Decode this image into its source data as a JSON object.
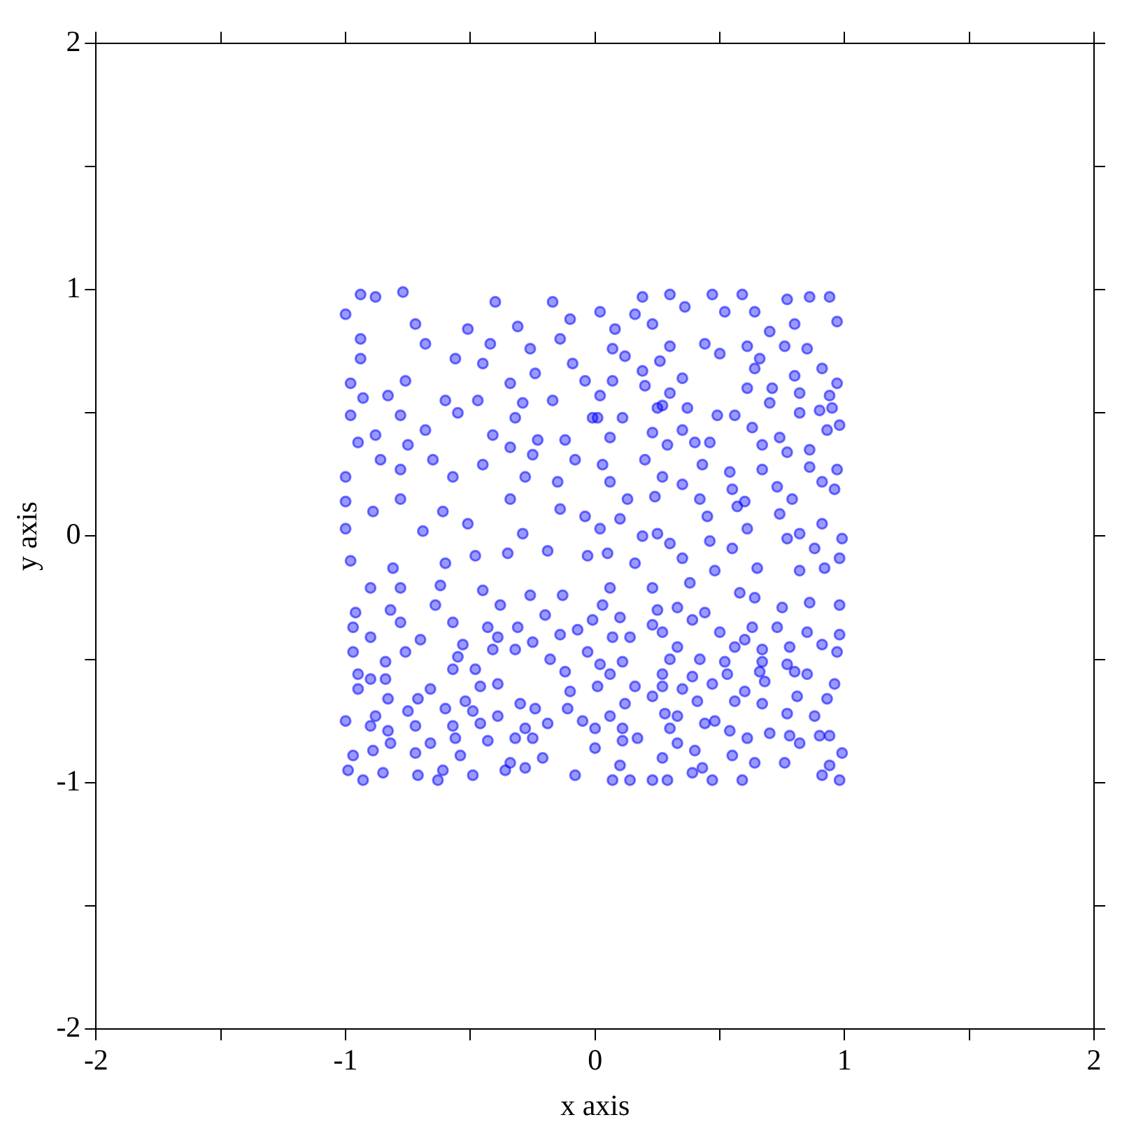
{
  "chart_data": {
    "type": "scatter",
    "xlabel": "x axis",
    "ylabel": "y axis",
    "marker": "circle",
    "grid": false,
    "legend": false,
    "xlim": [
      -2,
      2
    ],
    "ylim": [
      -2,
      2
    ],
    "xticks": [
      -2,
      {
        "value": -1.5,
        "label": null
      },
      -1,
      {
        "value": -0.5,
        "label": null
      },
      0,
      {
        "value": 0.5,
        "label": null
      },
      1,
      {
        "value": 1.5,
        "label": null
      },
      2
    ],
    "yticks": [
      -2,
      {
        "value": -1.5,
        "label": null
      },
      -1,
      {
        "value": -0.5,
        "label": null
      },
      0,
      {
        "value": 0.5,
        "label": null
      },
      1,
      {
        "value": 1.5,
        "label": null
      },
      2
    ],
    "series": [
      {
        "color": "#0000ff",
        "x": [
          -0.94,
          -0.88,
          -0.77,
          -0.4,
          -0.17,
          -1.0,
          -0.72,
          -0.51,
          -0.31,
          -0.1,
          -0.94,
          -0.68,
          -0.42,
          -0.26,
          -0.14,
          -0.94,
          -0.56,
          -0.45,
          -0.09,
          -0.98,
          -0.76,
          -0.34,
          -0.24,
          -0.04,
          -0.93,
          -0.83,
          -0.6,
          -0.47,
          -0.29,
          -0.17,
          -0.98,
          -0.78,
          -0.55,
          -0.32,
          -0.01,
          -0.88,
          -0.68,
          -0.41,
          -0.23,
          -0.12,
          -0.95,
          -0.75,
          -0.34,
          -0.86,
          -0.65,
          -0.45,
          -0.25,
          -0.08,
          -1.0,
          -0.78,
          -0.57,
          -0.28,
          -0.15,
          -1.0,
          -0.78,
          -0.61,
          -0.34,
          -0.14,
          -0.89,
          -1.0,
          -0.69,
          -0.51,
          -0.29,
          -0.04,
          0.19,
          0.3,
          0.47,
          0.59,
          0.77,
          0.86,
          0.94,
          0.97,
          0.02,
          0.16,
          0.36,
          0.52,
          0.64,
          0.08,
          0.23,
          0.7,
          0.8,
          0.07,
          0.3,
          0.44,
          0.61,
          0.76,
          0.85,
          0.12,
          0.26,
          0.5,
          0.66,
          0.91,
          0.19,
          0.35,
          0.64,
          0.8,
          0.97,
          0.07,
          0.2,
          0.3,
          0.61,
          0.71,
          0.82,
          0.94,
          0.02,
          0.7,
          0.27,
          0.95,
          0.11,
          0.25,
          0.37,
          0.49,
          0.56,
          0.82,
          0.9,
          0.01,
          0.23,
          0.35,
          0.46,
          0.63,
          0.74,
          0.98,
          0.93,
          0.06,
          0.29,
          0.4,
          0.67,
          0.77,
          0.86,
          0.03,
          0.2,
          0.43,
          0.54,
          0.67,
          0.86,
          0.97,
          0.06,
          0.27,
          0.35,
          0.55,
          0.73,
          0.91,
          0.96,
          0.13,
          0.24,
          0.42,
          0.6,
          0.79,
          0.1,
          0.45,
          0.57,
          0.74,
          0.91,
          0.02,
          0.25,
          0.61,
          0.82,
          -0.98,
          -0.81,
          -0.6,
          -0.48,
          -0.35,
          -0.19,
          -0.03,
          -0.9,
          -0.78,
          -0.62,
          -0.45,
          -0.26,
          -0.13,
          -0.96,
          -0.82,
          -0.64,
          -0.38,
          -0.2,
          -0.01,
          -0.97,
          -0.78,
          -0.57,
          -0.43,
          -0.31,
          -0.07,
          -0.9,
          -0.7,
          -0.53,
          -0.39,
          -0.25,
          -0.14,
          -0.97,
          -0.76,
          -0.41,
          -0.03,
          -0.84,
          -0.55,
          -0.32,
          -0.18,
          -0.95,
          -0.57,
          -0.48,
          -0.12,
          -0.9,
          -0.84,
          -0.46,
          -0.39,
          -0.1,
          -0.95,
          -0.66,
          -0.83,
          -0.71,
          -0.52,
          -0.3,
          -0.11,
          -1.0,
          -0.88,
          -0.75,
          -0.6,
          -0.49,
          -0.39,
          -0.24,
          -0.05,
          -0.9,
          -0.83,
          -0.72,
          -0.57,
          -0.46,
          -0.28,
          -0.19,
          -0.82,
          -0.66,
          -0.56,
          -0.43,
          -0.32,
          -0.25,
          0.0,
          -0.89,
          -0.72,
          -0.97,
          -0.54,
          -0.34,
          -0.21,
          -0.99,
          -0.85,
          -0.71,
          -0.61,
          -0.49,
          -0.36,
          -0.28,
          -0.08,
          -0.93,
          -0.63,
          0.19,
          0.3,
          0.46,
          0.55,
          0.77,
          0.88,
          0.99,
          0.05,
          0.16,
          0.35,
          0.48,
          0.65,
          0.82,
          0.92,
          0.98,
          0.06,
          0.23,
          0.38,
          0.58,
          0.64,
          0.75,
          0.86,
          0.98,
          0.03,
          0.25,
          0.33,
          0.44,
          0.1,
          0.23,
          0.39,
          0.63,
          0.73,
          0.85,
          0.98,
          0.14,
          0.27,
          0.5,
          0.07,
          0.56,
          0.6,
          0.78,
          0.91,
          0.33,
          0.67,
          0.97,
          0.3,
          0.42,
          0.52,
          0.67,
          0.77,
          0.02,
          0.11,
          0.06,
          0.66,
          0.8,
          0.27,
          0.39,
          0.53,
          0.85,
          0.01,
          0.16,
          0.27,
          0.35,
          0.47,
          0.6,
          0.68,
          0.96,
          0.81,
          0.93,
          0.12,
          0.23,
          0.41,
          0.56,
          0.67,
          0.28,
          0.06,
          0.33,
          0.44,
          0.48,
          0.77,
          0.88,
          0.0,
          0.11,
          0.3,
          0.54,
          0.7,
          0.78,
          0.9,
          0.94,
          0.11,
          0.17,
          0.33,
          0.4,
          0.61,
          0.82,
          0.99,
          0.1,
          0.27,
          0.43,
          0.55,
          0.64,
          0.76,
          0.94,
          0.07,
          0.14,
          0.23,
          0.29,
          0.39,
          0.47,
          0.59,
          0.91,
          0.98
        ],
        "values": [
          0.98,
          0.97,
          0.99,
          0.95,
          0.95,
          0.9,
          0.86,
          0.84,
          0.85,
          0.88,
          0.8,
          0.78,
          0.78,
          0.76,
          0.8,
          0.72,
          0.72,
          0.7,
          0.7,
          0.62,
          0.63,
          0.62,
          0.66,
          0.63,
          0.56,
          0.57,
          0.55,
          0.55,
          0.54,
          0.55,
          0.49,
          0.49,
          0.5,
          0.48,
          0.48,
          0.41,
          0.43,
          0.41,
          0.39,
          0.39,
          0.38,
          0.37,
          0.36,
          0.31,
          0.31,
          0.29,
          0.33,
          0.31,
          0.24,
          0.27,
          0.24,
          0.24,
          0.22,
          0.14,
          0.15,
          0.1,
          0.15,
          0.11,
          0.1,
          0.03,
          0.02,
          0.05,
          0.01,
          0.08,
          0.97,
          0.98,
          0.98,
          0.98,
          0.96,
          0.97,
          0.97,
          0.87,
          0.91,
          0.9,
          0.93,
          0.91,
          0.91,
          0.84,
          0.86,
          0.83,
          0.86,
          0.76,
          0.77,
          0.78,
          0.77,
          0.77,
          0.76,
          0.73,
          0.71,
          0.74,
          0.72,
          0.68,
          0.67,
          0.64,
          0.68,
          0.65,
          0.62,
          0.63,
          0.61,
          0.58,
          0.6,
          0.6,
          0.58,
          0.57,
          0.57,
          0.54,
          0.53,
          0.52,
          0.48,
          0.52,
          0.52,
          0.49,
          0.49,
          0.5,
          0.51,
          0.48,
          0.42,
          0.43,
          0.38,
          0.44,
          0.4,
          0.45,
          0.43,
          0.4,
          0.37,
          0.38,
          0.37,
          0.34,
          0.35,
          0.29,
          0.31,
          0.29,
          0.26,
          0.27,
          0.28,
          0.27,
          0.22,
          0.24,
          0.21,
          0.19,
          0.2,
          0.22,
          0.19,
          0.15,
          0.16,
          0.15,
          0.14,
          0.15,
          0.07,
          0.08,
          0.12,
          0.09,
          0.05,
          0.03,
          0.01,
          0.03,
          0.01,
          -0.1,
          -0.13,
          -0.11,
          -0.08,
          -0.07,
          -0.06,
          -0.08,
          -0.21,
          -0.21,
          -0.2,
          -0.22,
          -0.24,
          -0.24,
          -0.31,
          -0.3,
          -0.28,
          -0.28,
          -0.32,
          -0.34,
          -0.37,
          -0.35,
          -0.35,
          -0.37,
          -0.37,
          -0.38,
          -0.41,
          -0.42,
          -0.44,
          -0.41,
          -0.43,
          -0.4,
          -0.47,
          -0.47,
          -0.46,
          -0.47,
          -0.51,
          -0.49,
          -0.46,
          -0.5,
          -0.56,
          -0.54,
          -0.54,
          -0.55,
          -0.58,
          -0.58,
          -0.61,
          -0.6,
          -0.63,
          -0.62,
          -0.62,
          -0.66,
          -0.66,
          -0.67,
          -0.68,
          -0.7,
          -0.75,
          -0.73,
          -0.71,
          -0.7,
          -0.71,
          -0.73,
          -0.7,
          -0.75,
          -0.77,
          -0.79,
          -0.77,
          -0.77,
          -0.76,
          -0.78,
          -0.76,
          -0.84,
          -0.84,
          -0.82,
          -0.83,
          -0.82,
          -0.82,
          -0.86,
          -0.87,
          -0.88,
          -0.89,
          -0.89,
          -0.92,
          -0.9,
          -0.95,
          -0.96,
          -0.97,
          -0.95,
          -0.97,
          -0.95,
          -0.94,
          -0.97,
          -0.99,
          -0.99,
          0.0,
          -0.03,
          -0.02,
          -0.05,
          -0.01,
          -0.05,
          -0.01,
          -0.07,
          -0.11,
          -0.09,
          -0.14,
          -0.13,
          -0.14,
          -0.13,
          -0.09,
          -0.21,
          -0.21,
          -0.19,
          -0.23,
          -0.25,
          -0.29,
          -0.27,
          -0.28,
          -0.28,
          -0.3,
          -0.29,
          -0.31,
          -0.33,
          -0.36,
          -0.34,
          -0.37,
          -0.37,
          -0.39,
          -0.4,
          -0.41,
          -0.39,
          -0.39,
          -0.41,
          -0.45,
          -0.42,
          -0.45,
          -0.44,
          -0.45,
          -0.46,
          -0.47,
          -0.5,
          -0.5,
          -0.51,
          -0.51,
          -0.52,
          -0.52,
          -0.51,
          -0.56,
          -0.55,
          -0.55,
          -0.56,
          -0.57,
          -0.56,
          -0.56,
          -0.61,
          -0.61,
          -0.61,
          -0.62,
          -0.6,
          -0.63,
          -0.59,
          -0.6,
          -0.65,
          -0.66,
          -0.68,
          -0.65,
          -0.67,
          -0.67,
          -0.68,
          -0.72,
          -0.73,
          -0.73,
          -0.76,
          -0.75,
          -0.72,
          -0.73,
          -0.78,
          -0.78,
          -0.78,
          -0.79,
          -0.8,
          -0.81,
          -0.81,
          -0.81,
          -0.83,
          -0.82,
          -0.84,
          -0.87,
          -0.82,
          -0.84,
          -0.88,
          -0.93,
          -0.9,
          -0.94,
          -0.89,
          -0.92,
          -0.92,
          -0.93,
          -0.99,
          -0.99,
          -0.99,
          -0.99,
          -0.96,
          -0.99,
          -0.99,
          -0.97,
          -0.99
        ]
      }
    ]
  }
}
